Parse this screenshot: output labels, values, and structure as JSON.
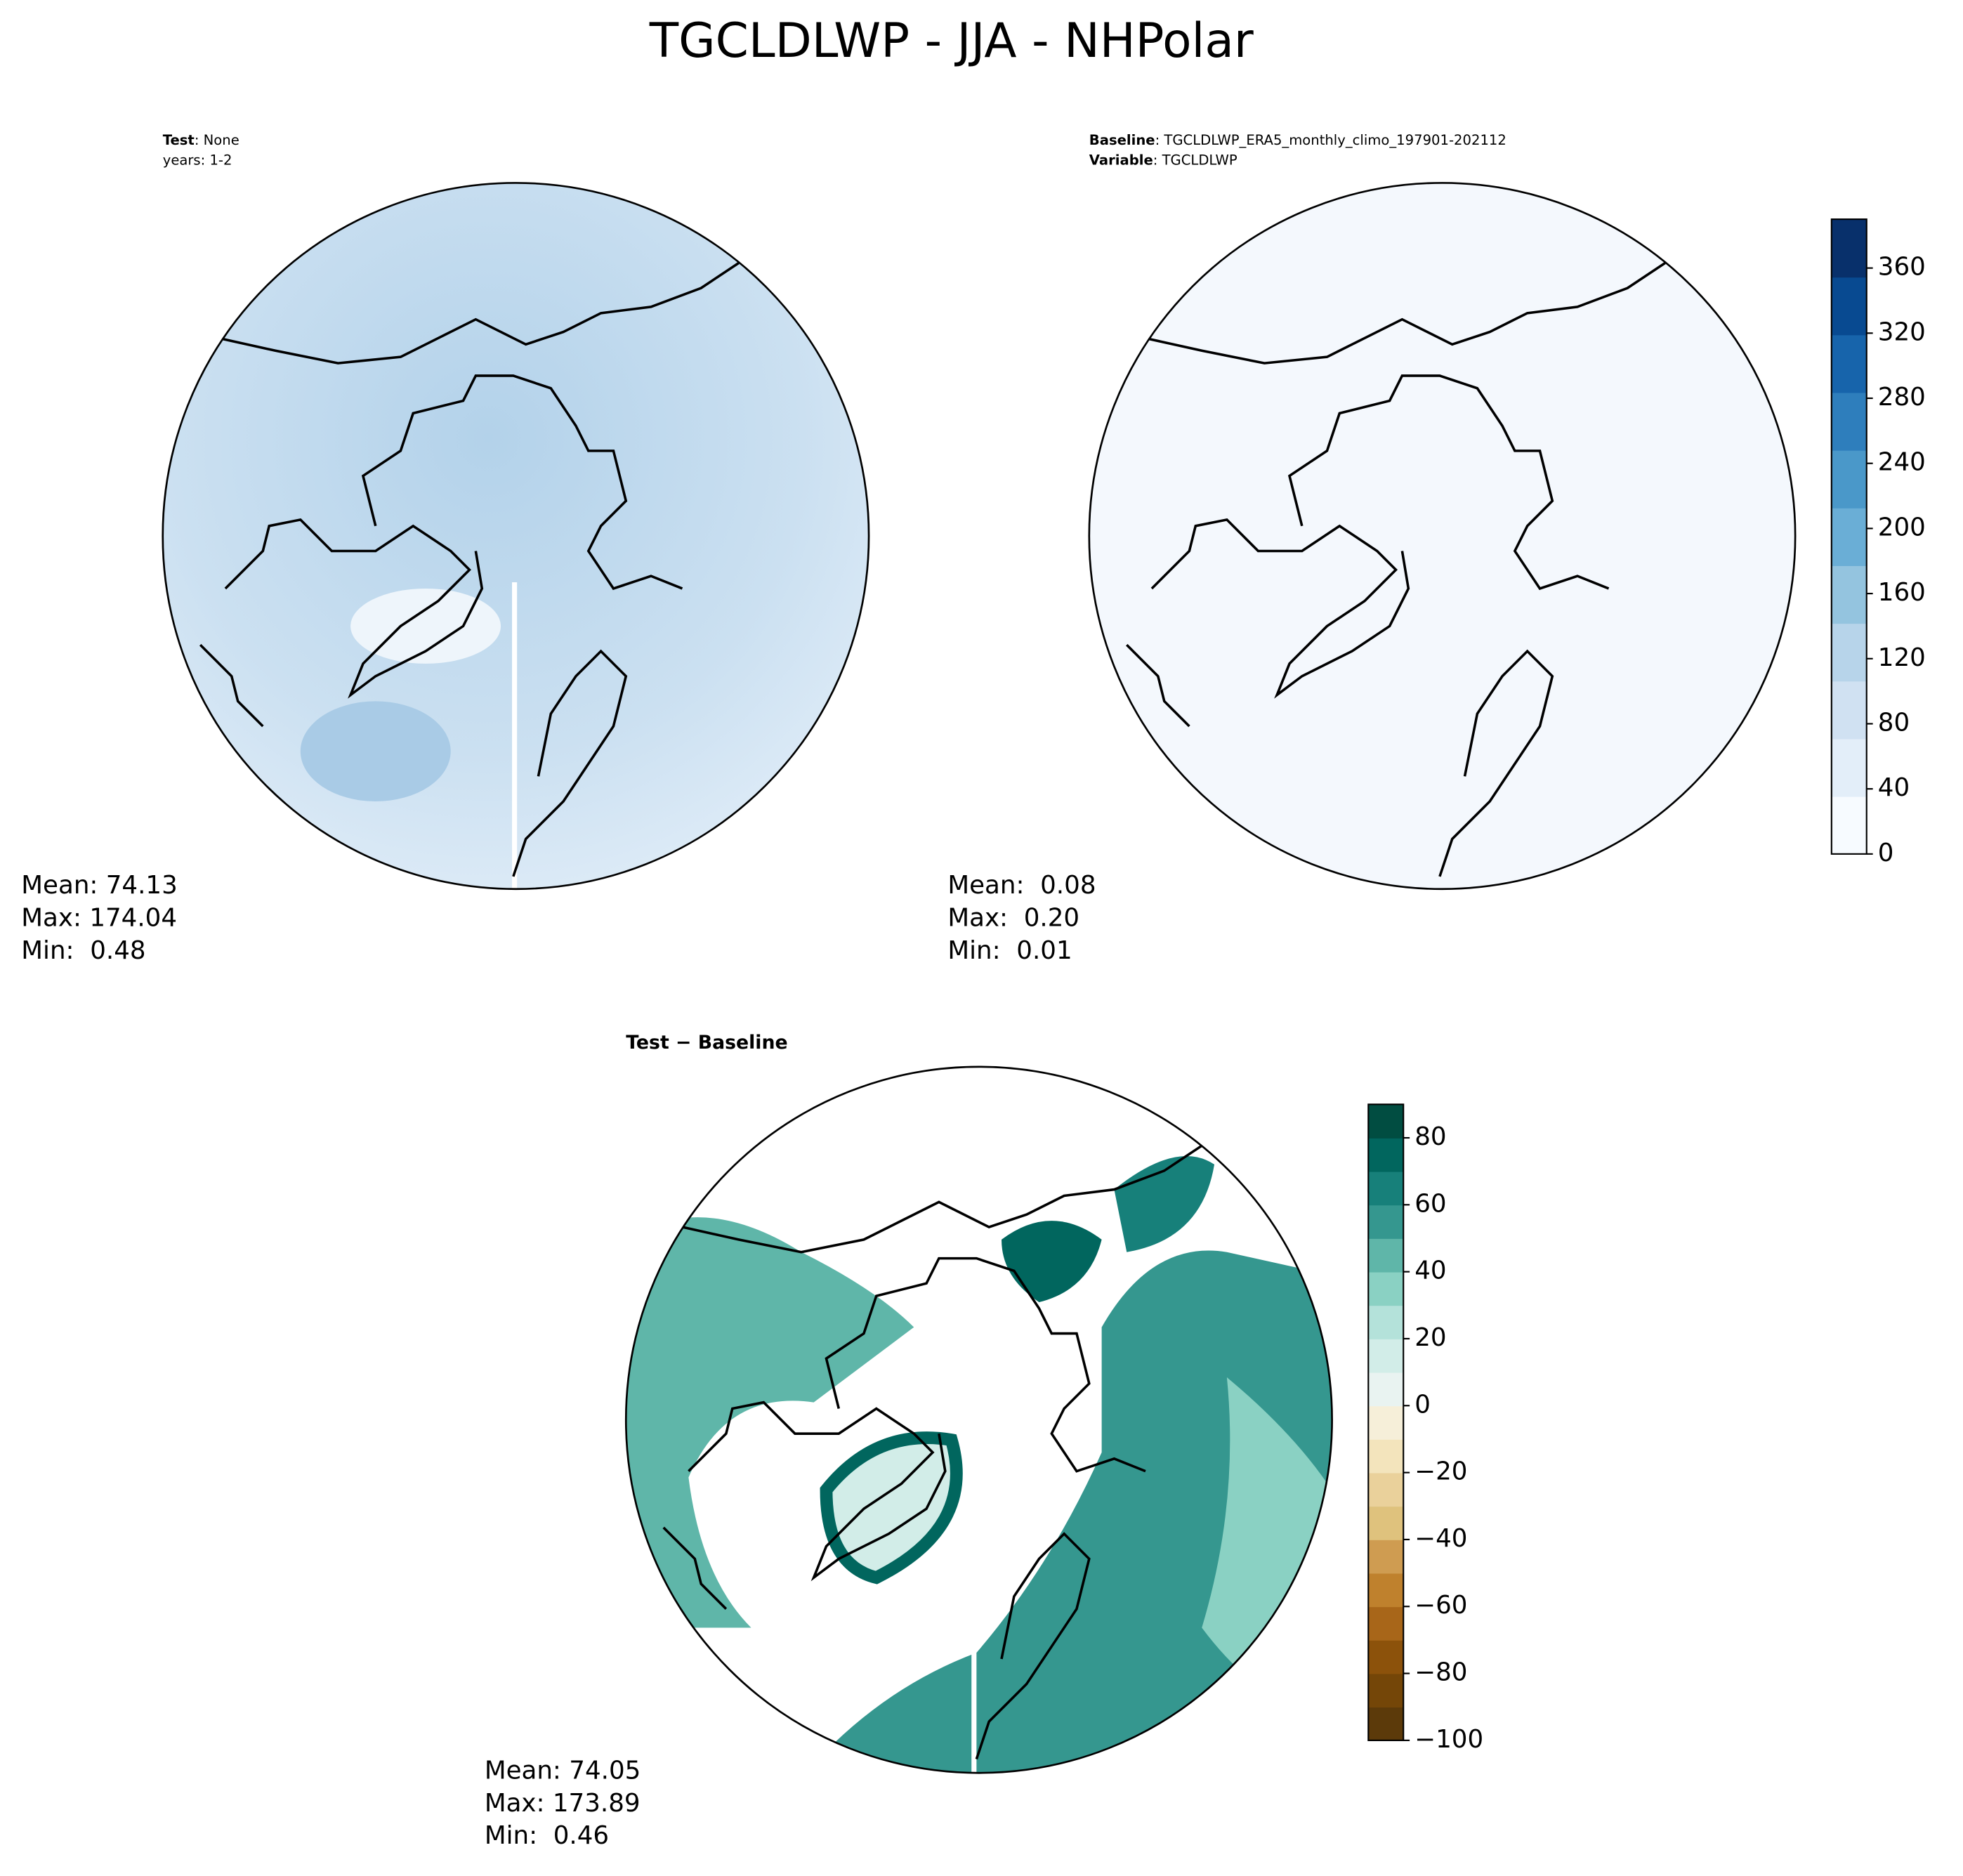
{
  "chart_data": {
    "type": "map",
    "title": "TGCLDLWP - JJA - NHPolar",
    "panels": [
      {
        "subtitle": [
          {
            "label": "Test",
            "text": ": None"
          },
          {
            "label": "",
            "text": "years: 1-2"
          }
        ],
        "stats": [
          "Mean: 74.13",
          "Max: 174.04",
          "Min:  0.48"
        ]
      },
      {
        "subtitle": [
          {
            "label": "Baseline",
            "text": ": TGCLDLWP_ERA5_monthly_climo_197901-202112"
          },
          {
            "label": "Variable",
            "text": ": TGCLDLWP"
          }
        ],
        "stats": [
          "Mean:  0.08",
          "Max:  0.20",
          "Min:  0.01"
        ],
        "colorbar": {
          "ylim": [
            0,
            390
          ],
          "yticks": [
            0,
            40,
            80,
            120,
            160,
            200,
            240,
            280,
            320,
            360
          ],
          "colors": [
            "#f7fbff",
            "#e3eef9",
            "#d0e1f2",
            "#b7d4ea",
            "#94c4df",
            "#6aaed6",
            "#4a98c9",
            "#2e7ebc",
            "#1764ab",
            "#084a91",
            "#08306b"
          ]
        }
      },
      {
        "subtitle": [
          {
            "label": "Test − Baseline",
            "text": ""
          }
        ],
        "stats": [
          "Mean: 74.05",
          "Max: 173.89",
          "Min:  0.46"
        ],
        "colorbar": {
          "ylim": [
            -100,
            90
          ],
          "yticks": [
            {
              "value": -100,
              "label": "−100"
            },
            {
              "value": -80,
              "label": "−80"
            },
            {
              "value": -60,
              "label": "−60"
            },
            {
              "value": -40,
              "label": "−40"
            },
            {
              "value": -20,
              "label": "−20"
            },
            0,
            20,
            40,
            60,
            80
          ],
          "colors": [
            "#5c3a0a",
            "#744608",
            "#8c520b",
            "#a86619",
            "#bf812d",
            "#cf9c51",
            "#dfc27d",
            "#ead19b",
            "#f3e4bc",
            "#f6efd9",
            "#e9f3f1",
            "#d2ede8",
            "#b4e2da",
            "#8ad1c3",
            "#5fb6a9",
            "#35978f",
            "#17807a",
            "#01665e",
            "#014d41"
          ]
        }
      }
    ]
  }
}
